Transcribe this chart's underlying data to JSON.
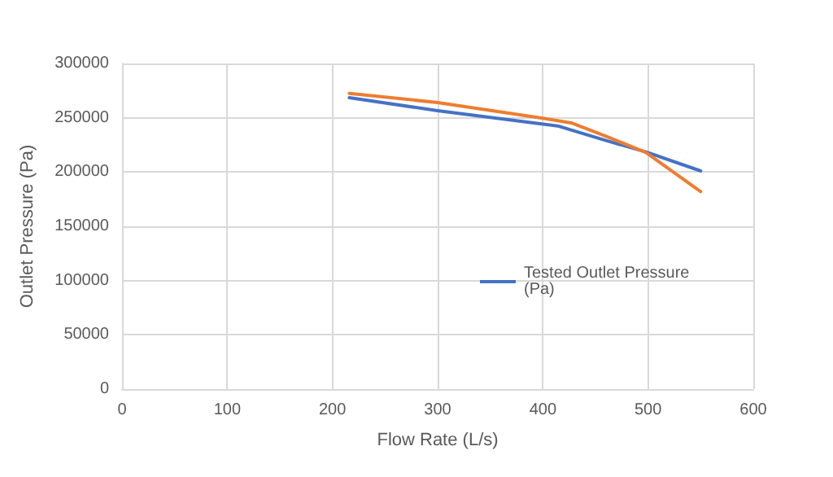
{
  "chart_data": {
    "type": "line",
    "xlabel": "Flow Rate (L/s)",
    "ylabel": "Outlet Pressure (Pa)",
    "xlim": [
      0,
      600
    ],
    "xticks": [
      0,
      100,
      200,
      300,
      400,
      500,
      600
    ],
    "ylim": [
      0,
      300000
    ],
    "yticks": [
      0,
      50000,
      100000,
      150000,
      200000,
      250000,
      300000
    ],
    "grid": true,
    "legend": "center right",
    "marker": "none",
    "series": [
      {
        "name": "Tested Outlet Pressure\n(Pa)",
        "color": "#4472c4",
        "x": [
          216,
          300,
          414,
          460,
          498,
          550
        ],
        "values": [
          268500,
          256500,
          242500,
          229000,
          218500,
          201000
        ]
      },
      {
        "color": "#ed7d31",
        "x": [
          216,
          300,
          400,
          428,
          460,
          498,
          550
        ],
        "values": [
          272500,
          264000,
          249500,
          245000,
          233000,
          218000,
          182000
        ]
      }
    ]
  }
}
